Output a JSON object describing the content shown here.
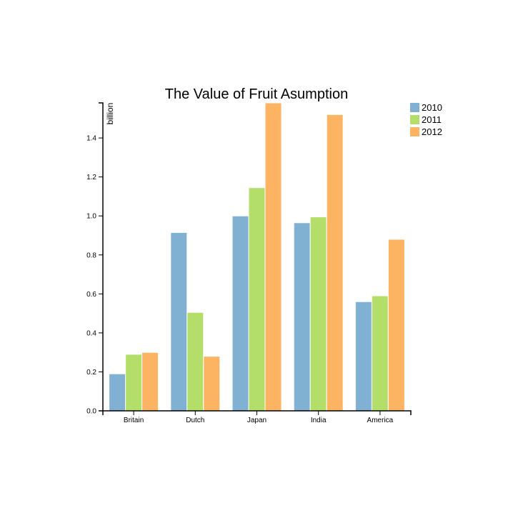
{
  "chart_data": {
    "type": "bar",
    "title": "The Value of Fruit Asumption",
    "ylabel": "billion",
    "xlabel": "",
    "categories": [
      "Britain",
      "Dutch",
      "Japan",
      "India",
      "America"
    ],
    "series": [
      {
        "name": "2010",
        "color": "#80b1d3",
        "values": [
          0.19,
          0.915,
          1.0,
          0.965,
          0.56
        ]
      },
      {
        "name": "2011",
        "color": "#b3de69",
        "values": [
          0.29,
          0.505,
          1.145,
          0.995,
          0.59
        ]
      },
      {
        "name": "2012",
        "color": "#fdb462",
        "values": [
          0.3,
          0.28,
          1.58,
          1.52,
          0.88
        ]
      }
    ],
    "ylim": [
      0,
      1.58
    ],
    "yticks": [
      "0.0",
      "0.2",
      "0.4",
      "0.6",
      "0.8",
      "1.0",
      "1.2",
      "1.4"
    ],
    "ytick_values": [
      0,
      0.2,
      0.4,
      0.6,
      0.8,
      1.0,
      1.2,
      1.4
    ],
    "legend_position": "top-right",
    "grid": false
  }
}
